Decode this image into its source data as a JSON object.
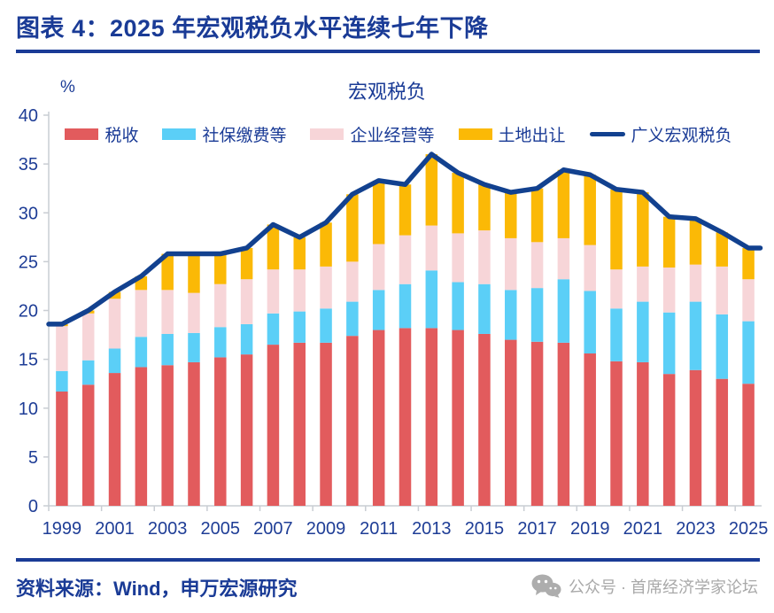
{
  "header": {
    "title": "图表 4：2025 年宏观税负水平连续七年下降"
  },
  "chart_data": {
    "type": "bar",
    "subtype": "stacked-bar-with-line",
    "title": "宏观税负",
    "unit_label": "%",
    "xlabel": "",
    "ylabel": "%",
    "ylim": [
      0,
      40
    ],
    "y_ticks": [
      0,
      5,
      10,
      15,
      20,
      25,
      30,
      35,
      40
    ],
    "grid": false,
    "legend_position": "top",
    "x": [
      1999,
      2000,
      2001,
      2002,
      2003,
      2004,
      2005,
      2006,
      2007,
      2008,
      2009,
      2010,
      2011,
      2012,
      2013,
      2014,
      2015,
      2016,
      2017,
      2018,
      2019,
      2020,
      2021,
      2022,
      2023,
      2024,
      2025
    ],
    "x_tick_labels": [
      "1999",
      "2001",
      "2003",
      "2005",
      "2007",
      "2009",
      "2011",
      "2013",
      "2015",
      "2017",
      "2019",
      "2021",
      "2023",
      "2025"
    ],
    "series": [
      {
        "name": "税收",
        "type": "bar",
        "color": "#E25B5D",
        "values": [
          11.7,
          12.4,
          13.6,
          14.2,
          14.4,
          14.7,
          15.2,
          15.5,
          16.5,
          16.7,
          16.7,
          17.4,
          18.0,
          18.2,
          18.2,
          18.0,
          17.6,
          17.0,
          16.8,
          16.7,
          15.6,
          14.8,
          14.7,
          13.5,
          13.9,
          13.0,
          12.5
        ]
      },
      {
        "name": "社保缴费等",
        "type": "bar",
        "color": "#5BCFF7",
        "values": [
          2.1,
          2.5,
          2.5,
          3.1,
          3.2,
          3.0,
          3.1,
          3.1,
          3.2,
          3.2,
          3.5,
          3.5,
          4.1,
          4.5,
          5.9,
          4.9,
          5.1,
          5.1,
          5.5,
          6.5,
          6.4,
          5.4,
          6.2,
          6.3,
          7.0,
          6.6,
          6.4
        ]
      },
      {
        "name": "企业经营等",
        "type": "bar",
        "color": "#F7D5D8",
        "values": [
          4.6,
          4.8,
          5.1,
          4.8,
          4.5,
          4.1,
          4.4,
          4.6,
          4.5,
          4.3,
          4.3,
          4.1,
          4.7,
          5.0,
          4.6,
          5.0,
          5.5,
          5.3,
          4.7,
          4.2,
          4.7,
          4.0,
          3.6,
          4.6,
          3.8,
          4.9,
          4.3
        ]
      },
      {
        "name": "土地出让",
        "type": "bar",
        "color": "#FBB906",
        "values": [
          0.2,
          0.3,
          0.7,
          1.4,
          3.7,
          4.0,
          3.1,
          3.2,
          4.6,
          3.3,
          4.5,
          6.9,
          6.5,
          5.2,
          7.3,
          6.2,
          4.7,
          4.7,
          5.5,
          7.0,
          7.2,
          8.2,
          7.6,
          5.2,
          4.7,
          3.5,
          3.2
        ]
      },
      {
        "name": "广义宏观税负",
        "type": "line",
        "color": "#12418F",
        "values": [
          18.6,
          20.0,
          21.9,
          23.5,
          25.8,
          25.8,
          25.8,
          26.4,
          28.8,
          27.5,
          29.0,
          31.9,
          33.3,
          32.9,
          36.0,
          34.1,
          32.9,
          32.1,
          32.5,
          34.4,
          33.9,
          32.4,
          32.1,
          29.6,
          29.4,
          28.0,
          26.4
        ]
      }
    ]
  },
  "footer": {
    "source": "资料来源：Wind，申万宏源研究",
    "wechat": "公众号 · 首席经济学家论坛"
  }
}
